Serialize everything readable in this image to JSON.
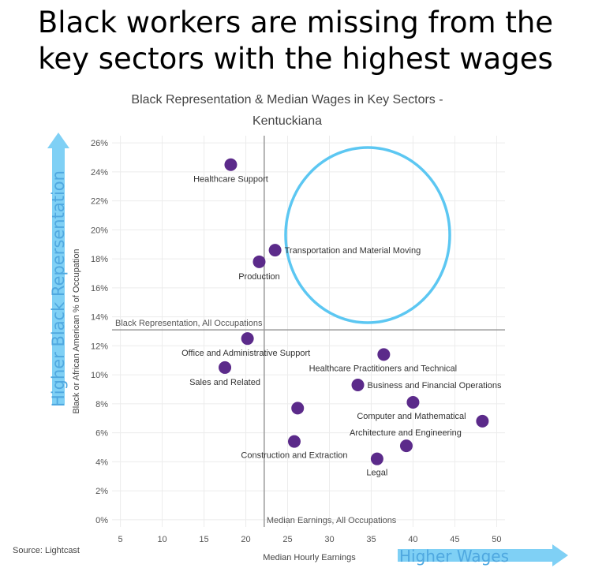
{
  "headline": {
    "line1": "Black workers are missing from the",
    "line2": "key sectors with the highest wages"
  },
  "source": "Source: Lightcast",
  "arrows": {
    "y_label": "Higher Black Repersentation",
    "x_label": "Higher Wages",
    "color": "#7fd0f5"
  },
  "chart_data": {
    "type": "scatter",
    "title": "Black Representation & Median Wages in Key Sectors -",
    "subtitle": "Kentuckiana",
    "xlabel": "Median Hourly Earnings",
    "ylabel": "Black or African American % of Occupation",
    "xlim": [
      4,
      51
    ],
    "ylim": [
      -0.5,
      26.5
    ],
    "x_ticks": [
      5,
      10,
      15,
      20,
      25,
      30,
      35,
      40,
      45,
      50
    ],
    "y_ticks": [
      0,
      2,
      4,
      6,
      8,
      10,
      12,
      14,
      16,
      18,
      20,
      22,
      24,
      26
    ],
    "y_tick_suffix": "%",
    "grid": true,
    "marker_color": "#5b2a8a",
    "reference_lines": {
      "horizontal": {
        "y": 13.1,
        "label": "Black Representation, All Occupations"
      },
      "vertical": {
        "x": 22.2,
        "label": "Median Earnings, All Occupations"
      }
    },
    "points": [
      {
        "x": 18.2,
        "y": 24.5,
        "label": "Healthcare Support"
      },
      {
        "x": 23.5,
        "y": 18.6,
        "label": "Transportation and Material Moving"
      },
      {
        "x": 21.6,
        "y": 17.8,
        "label": "Production"
      },
      {
        "x": 20.2,
        "y": 12.5,
        "label": "Office and Administrative Support"
      },
      {
        "x": 17.5,
        "y": 10.5,
        "label": "Sales and Related"
      },
      {
        "x": 36.5,
        "y": 11.4,
        "label": "Healthcare Practitioners and Technical"
      },
      {
        "x": 33.4,
        "y": 9.3,
        "label": "Business and Financial Operations"
      },
      {
        "x": 26.2,
        "y": 7.7,
        "label": ""
      },
      {
        "x": 40.0,
        "y": 8.1,
        "label": "Computer and Mathematical"
      },
      {
        "x": 48.3,
        "y": 6.8,
        "label": ""
      },
      {
        "x": 39.2,
        "y": 5.1,
        "label": "Architecture and Engineering"
      },
      {
        "x": 25.8,
        "y": 5.4,
        "label": "Construction and Extraction"
      },
      {
        "x": 35.7,
        "y": 4.2,
        "label": "Legal"
      }
    ],
    "highlight_ellipse_color": "#5cc7f2"
  }
}
